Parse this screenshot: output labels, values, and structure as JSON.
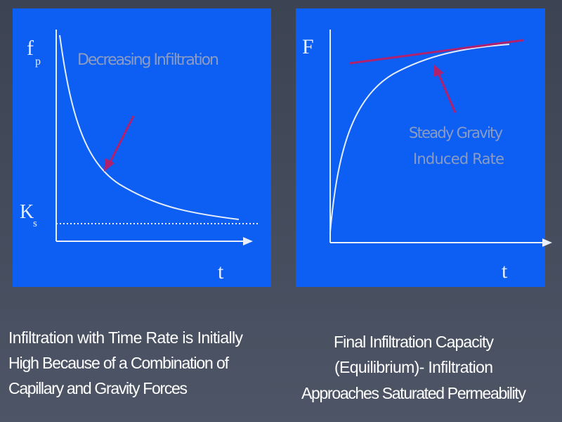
{
  "left_panel": {
    "y_label": "f",
    "y_label_sub": "p",
    "curve_label": "Decreasing Infiltration",
    "baseline_label": "K",
    "baseline_label_sub": "s",
    "x_label": "t"
  },
  "right_panel": {
    "y_label": "F",
    "annotation_lines": [
      "Steady Gravity",
      "Induced  Rate"
    ],
    "x_label": "t"
  },
  "captions": {
    "left": [
      "Infiltration with Time Rate is Initially",
      "High Because of a Combination of",
      "Capillary and Gravity Forces"
    ],
    "right": [
      "Final Infiltration Capacity",
      "(Equilibrium)- Infiltration",
      "Approaches Saturated Permeability"
    ]
  }
}
